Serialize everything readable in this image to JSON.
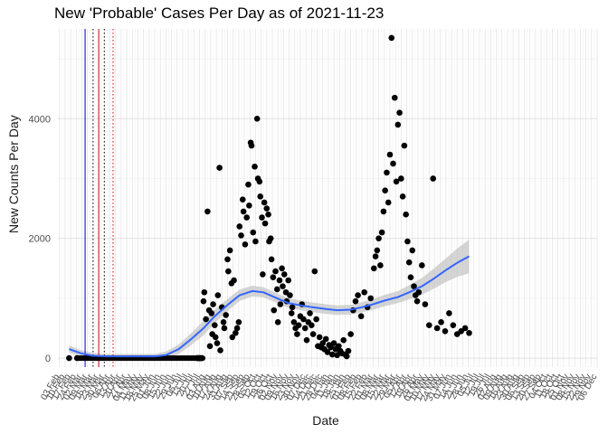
{
  "chart_data": {
    "type": "scatter",
    "title": "New 'Probable' Cases Per Day as of 2021-11-23",
    "xlabel": "Date",
    "ylabel": "New Counts Per Day",
    "x_range": [
      "2020-02-01",
      "2021-12-06"
    ],
    "ylim": [
      -150,
      5500
    ],
    "y_ticks": [
      0,
      2000,
      4000
    ],
    "x_tick_labels": [
      "03 Feb",
      "10 Feb",
      "17 Feb",
      "24 Feb",
      "02 Mar",
      "09 Mar",
      "16 Mar",
      "23 Mar",
      "30 Mar",
      "06 Apr",
      "13 Apr",
      "20 Apr",
      "27 Apr",
      "04 May",
      "11 May",
      "18 May",
      "25 May",
      "01 Jun",
      "08 Jun",
      "15 Jun",
      "22 Jun",
      "29 Jun",
      "06 Jul",
      "13 Jul",
      "20 Jul",
      "27 Jul",
      "03 Aug",
      "10 Aug",
      "17 Aug",
      "24 Aug",
      "31 Aug",
      "07 Sep",
      "14 Sep",
      "21 Sep",
      "28 Sep",
      "05 Oct",
      "12 Oct",
      "19 Oct",
      "26 Oct",
      "02 Nov",
      "09 Nov",
      "16 Nov",
      "23 Nov",
      "30 Nov",
      "07 Dec",
      "14 Dec",
      "21 Dec",
      "28 Dec",
      "04 Jan",
      "11 Jan",
      "18 Jan",
      "25 Jan",
      "01 Feb",
      "08 Feb",
      "15 Feb",
      "22 Feb",
      "01 Mar",
      "08 Mar",
      "15 Mar",
      "22 Mar",
      "29 Mar",
      "05 Apr",
      "12 Apr",
      "19 Apr",
      "26 Apr",
      "03 May",
      "10 May",
      "17 May",
      "24 May",
      "31 May",
      "07 Jun",
      "14 Jun",
      "21 Jun",
      "28 Jun",
      "05 Jul",
      "12 Jul",
      "19 Jul",
      "26 Jul",
      "02 Aug",
      "09 Aug",
      "16 Aug",
      "23 Aug",
      "30 Aug",
      "06 Sep",
      "13 Sep",
      "20 Sep",
      "27 Sep",
      "04 Oct",
      "11 Oct",
      "18 Oct",
      "25 Oct",
      "01 Nov",
      "08 Nov",
      "15 Nov",
      "22 Nov",
      "29 Nov",
      "06 Dec"
    ],
    "vlines": [
      {
        "date": "2020-03-06",
        "color": "#0000cc",
        "style": "solid"
      },
      {
        "date": "2020-03-16",
        "color": "#000000",
        "style": "dotted"
      },
      {
        "date": "2020-03-23",
        "color": "#cc0000",
        "style": "solid"
      },
      {
        "date": "2020-03-30",
        "color": "#000000",
        "style": "dotted"
      },
      {
        "date": "2020-04-10",
        "color": "#cc0000",
        "style": "dotted"
      }
    ],
    "points": [
      [
        "2020-02-15",
        0
      ],
      [
        "2020-02-25",
        0
      ],
      [
        "2020-07-24",
        0
      ],
      [
        "2020-07-25",
        0
      ],
      [
        "2020-07-26",
        0
      ],
      [
        "2020-07-27",
        0
      ],
      [
        "2020-07-28",
        0
      ],
      [
        "2020-07-29",
        0
      ],
      [
        "2020-07-30",
        0
      ],
      [
        "2020-08-01",
        950
      ],
      [
        "2020-08-02",
        1100
      ],
      [
        "2020-08-04",
        650
      ],
      [
        "2020-08-06",
        2450
      ],
      [
        "2020-08-08",
        800
      ],
      [
        "2020-08-09",
        200
      ],
      [
        "2020-08-11",
        750
      ],
      [
        "2020-08-12",
        400
      ],
      [
        "2020-08-13",
        900
      ],
      [
        "2020-08-15",
        550
      ],
      [
        "2020-08-16",
        350
      ],
      [
        "2020-08-18",
        250
      ],
      [
        "2020-08-19",
        1050
      ],
      [
        "2020-08-21",
        3180
      ],
      [
        "2020-08-22",
        130
      ],
      [
        "2020-08-24",
        850
      ],
      [
        "2020-08-26",
        600
      ],
      [
        "2020-08-27",
        500
      ],
      [
        "2020-08-29",
        720
      ],
      [
        "2020-08-31",
        1650
      ],
      [
        "2020-09-01",
        1450
      ],
      [
        "2020-09-03",
        1800
      ],
      [
        "2020-09-05",
        1250
      ],
      [
        "2020-09-06",
        350
      ],
      [
        "2020-09-08",
        1300
      ],
      [
        "2020-09-10",
        420
      ],
      [
        "2020-09-12",
        500
      ],
      [
        "2020-09-14",
        600
      ],
      [
        "2020-09-15",
        2200
      ],
      [
        "2020-09-17",
        2050
      ],
      [
        "2020-09-19",
        2650
      ],
      [
        "2020-09-20",
        2450
      ],
      [
        "2020-09-22",
        1900
      ],
      [
        "2020-09-24",
        2350
      ],
      [
        "2020-09-26",
        2900
      ],
      [
        "2020-09-27",
        2550
      ],
      [
        "2020-09-29",
        3600
      ],
      [
        "2020-09-30",
        3550
      ],
      [
        "2020-10-02",
        2100
      ],
      [
        "2020-10-04",
        3200
      ],
      [
        "2020-10-05",
        1950
      ],
      [
        "2020-10-07",
        4000
      ],
      [
        "2020-10-08",
        3000
      ],
      [
        "2020-10-10",
        2950
      ],
      [
        "2020-10-11",
        2700
      ],
      [
        "2020-10-13",
        2350
      ],
      [
        "2020-10-14",
        1400
      ],
      [
        "2020-10-16",
        2600
      ],
      [
        "2020-10-17",
        2250
      ],
      [
        "2020-10-19",
        2500
      ],
      [
        "2020-10-21",
        2400
      ],
      [
        "2020-10-22",
        1950
      ],
      [
        "2020-10-24",
        2000
      ],
      [
        "2020-10-25",
        1650
      ],
      [
        "2020-10-27",
        1350
      ],
      [
        "2020-10-28",
        800
      ],
      [
        "2020-10-30",
        1450
      ],
      [
        "2020-11-01",
        1150
      ],
      [
        "2020-11-02",
        600
      ],
      [
        "2020-11-04",
        1300
      ],
      [
        "2020-11-05",
        900
      ],
      [
        "2020-11-07",
        1500
      ],
      [
        "2020-11-08",
        1200
      ],
      [
        "2020-11-10",
        1400
      ],
      [
        "2020-11-12",
        1100
      ],
      [
        "2020-11-13",
        950
      ],
      [
        "2020-11-15",
        1300
      ],
      [
        "2020-11-17",
        1050
      ],
      [
        "2020-11-19",
        750
      ],
      [
        "2020-11-20",
        850
      ],
      [
        "2020-11-22",
        600
      ],
      [
        "2020-11-24",
        500
      ],
      [
        "2020-11-26",
        400
      ],
      [
        "2020-11-28",
        550
      ],
      [
        "2020-11-30",
        700
      ],
      [
        "2020-12-02",
        900
      ],
      [
        "2020-12-04",
        650
      ],
      [
        "2020-12-06",
        500
      ],
      [
        "2020-12-08",
        300
      ],
      [
        "2020-12-10",
        600
      ],
      [
        "2020-12-12",
        750
      ],
      [
        "2020-12-14",
        550
      ],
      [
        "2020-12-16",
        400
      ],
      [
        "2020-12-18",
        1450
      ],
      [
        "2020-12-20",
        650
      ],
      [
        "2020-12-22",
        200
      ],
      [
        "2020-12-24",
        350
      ],
      [
        "2020-12-26",
        180
      ],
      [
        "2020-12-28",
        250
      ],
      [
        "2020-12-30",
        150
      ],
      [
        "2021-01-01",
        320
      ],
      [
        "2021-01-03",
        100
      ],
      [
        "2021-01-05",
        220
      ],
      [
        "2021-01-07",
        180
      ],
      [
        "2021-01-09",
        60
      ],
      [
        "2021-01-11",
        250
      ],
      [
        "2021-01-13",
        150
      ],
      [
        "2021-01-15",
        50
      ],
      [
        "2021-01-17",
        200
      ],
      [
        "2021-01-19",
        120
      ],
      [
        "2021-01-21",
        80
      ],
      [
        "2021-01-23",
        300
      ],
      [
        "2021-01-25",
        60
      ],
      [
        "2021-01-27",
        30
      ],
      [
        "2021-01-29",
        120
      ],
      [
        "2021-02-01",
        400
      ],
      [
        "2021-02-04",
        800
      ],
      [
        "2021-02-07",
        950
      ],
      [
        "2021-02-10",
        1050
      ],
      [
        "2021-02-14",
        700
      ],
      [
        "2021-02-18",
        1100
      ],
      [
        "2021-02-22",
        850
      ],
      [
        "2021-02-26",
        1000
      ],
      [
        "2021-03-02",
        1500
      ],
      [
        "2021-03-04",
        1700
      ],
      [
        "2021-03-06",
        1800
      ],
      [
        "2021-03-08",
        2000
      ],
      [
        "2021-03-10",
        1550
      ],
      [
        "2021-03-12",
        2100
      ],
      [
        "2021-03-14",
        2450
      ],
      [
        "2021-03-16",
        2800
      ],
      [
        "2021-03-18",
        3100
      ],
      [
        "2021-03-20",
        2600
      ],
      [
        "2021-03-22",
        3400
      ],
      [
        "2021-03-24",
        5350
      ],
      [
        "2021-03-26",
        3250
      ],
      [
        "2021-03-28",
        4350
      ],
      [
        "2021-03-30",
        2950
      ],
      [
        "2021-04-01",
        3900
      ],
      [
        "2021-04-03",
        4100
      ],
      [
        "2021-04-05",
        3000
      ],
      [
        "2021-04-07",
        2700
      ],
      [
        "2021-04-09",
        3550
      ],
      [
        "2021-04-11",
        2400
      ],
      [
        "2021-04-13",
        1950
      ],
      [
        "2021-04-15",
        1600
      ],
      [
        "2021-04-17",
        1350
      ],
      [
        "2021-04-19",
        1800
      ],
      [
        "2021-04-21",
        1200
      ],
      [
        "2021-04-23",
        1050
      ],
      [
        "2021-04-25",
        950
      ],
      [
        "2021-04-27",
        1100
      ],
      [
        "2021-05-01",
        1550
      ],
      [
        "2021-05-05",
        900
      ],
      [
        "2021-05-10",
        550
      ],
      [
        "2021-05-15",
        3000
      ],
      [
        "2021-05-20",
        500
      ],
      [
        "2021-05-25",
        600
      ],
      [
        "2021-05-30",
        450
      ],
      [
        "2021-06-04",
        750
      ],
      [
        "2021-06-09",
        550
      ],
      [
        "2021-06-14",
        400
      ],
      [
        "2021-06-19",
        450
      ],
      [
        "2021-06-24",
        500
      ],
      [
        "2021-06-29",
        420
      ]
    ],
    "zero_band": [
      "2020-02-28",
      "2020-07-31"
    ],
    "smooth_line": [
      [
        "2020-02-15",
        150
      ],
      [
        "2020-03-01",
        80
      ],
      [
        "2020-03-15",
        40
      ],
      [
        "2020-04-01",
        30
      ],
      [
        "2020-05-01",
        30
      ],
      [
        "2020-06-01",
        30
      ],
      [
        "2020-06-15",
        50
      ],
      [
        "2020-07-01",
        150
      ],
      [
        "2020-07-15",
        300
      ],
      [
        "2020-08-01",
        500
      ],
      [
        "2020-08-15",
        700
      ],
      [
        "2020-09-01",
        900
      ],
      [
        "2020-09-15",
        1050
      ],
      [
        "2020-10-01",
        1120
      ],
      [
        "2020-10-15",
        1100
      ],
      [
        "2020-11-01",
        1000
      ],
      [
        "2020-11-15",
        920
      ],
      [
        "2020-12-01",
        880
      ],
      [
        "2020-12-15",
        850
      ],
      [
        "2021-01-01",
        820
      ],
      [
        "2021-01-15",
        800
      ],
      [
        "2021-02-01",
        810
      ],
      [
        "2021-02-15",
        850
      ],
      [
        "2021-03-01",
        900
      ],
      [
        "2021-03-15",
        960
      ],
      [
        "2021-04-01",
        1020
      ],
      [
        "2021-04-15",
        1100
      ],
      [
        "2021-05-01",
        1200
      ],
      [
        "2021-05-15",
        1320
      ],
      [
        "2021-06-01",
        1480
      ],
      [
        "2021-06-15",
        1600
      ],
      [
        "2021-06-29",
        1700
      ]
    ],
    "band_half_width": [
      [
        "2020-02-15",
        60
      ],
      [
        "2020-04-01",
        40
      ],
      [
        "2020-06-01",
        40
      ],
      [
        "2020-07-01",
        80
      ],
      [
        "2020-08-01",
        120
      ],
      [
        "2020-09-01",
        100
      ],
      [
        "2020-10-01",
        90
      ],
      [
        "2020-11-01",
        80
      ],
      [
        "2020-12-01",
        80
      ],
      [
        "2021-01-01",
        80
      ],
      [
        "2021-02-01",
        80
      ],
      [
        "2021-03-01",
        90
      ],
      [
        "2021-04-01",
        100
      ],
      [
        "2021-05-01",
        140
      ],
      [
        "2021-06-01",
        200
      ],
      [
        "2021-06-29",
        280
      ]
    ],
    "colors": {
      "points": "#000000",
      "smooth": "#3366ff",
      "band": "#bfbfbf",
      "grid_major": "#e0e0e0",
      "grid_minor": "#f0f0f0"
    },
    "grid": true,
    "legend": "none"
  }
}
